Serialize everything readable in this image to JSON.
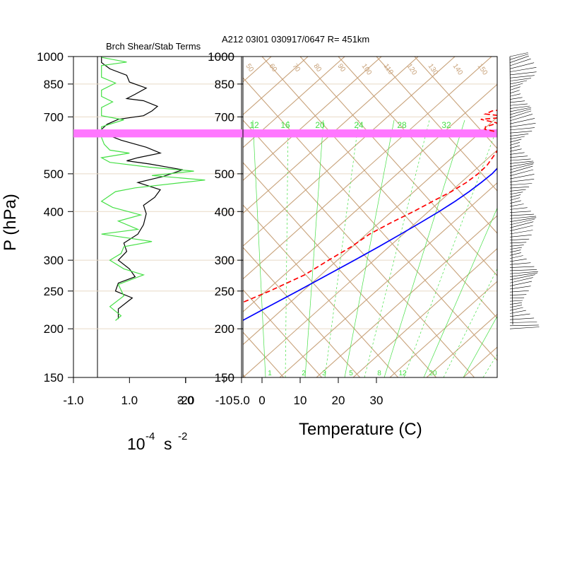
{
  "header": {
    "left_title": "Brch Shear/Stab Terms",
    "right_title": "A212 03I01 030917/0647 R= 451km"
  },
  "colors": {
    "frame": "#000000",
    "skew_grid": "#c8a27a",
    "mixing_ratio": "#46e046",
    "temperature": "#0000ff",
    "dewpoint": "#ff0000",
    "shear_term": "#000000",
    "stab_term": "#46e046",
    "highlight_band": "#ff77ff"
  },
  "chart_data": [
    {
      "type": "line",
      "name": "left-panel",
      "xlabel": "10",
      "xlabel_exp": "-4",
      "xlabel_unit": "s",
      "xlabel_unit_exp": "-2",
      "ylabel": "P (hPa)",
      "y_scale": "log",
      "ylim": [
        1000,
        150
      ],
      "xlim": [
        -1.0,
        5.0
      ],
      "x_ticks": [
        "-1.0",
        "1.0",
        "3.0",
        "5.0"
      ],
      "x_tick_values": [
        -1.0,
        1.0,
        3.0,
        5.0
      ],
      "y_ticks": [
        "150",
        "200",
        "250",
        "300",
        "400",
        "500",
        "700",
        "850",
        "1000"
      ],
      "y_tick_values": [
        150,
        200,
        250,
        300,
        400,
        500,
        700,
        850,
        1000
      ],
      "series": [
        {
          "color_key": "shear_term",
          "points": [
            [
              0.0,
              1000
            ],
            [
              0.0,
              965
            ],
            [
              0.3,
              930
            ],
            [
              0.9,
              895
            ],
            [
              1.0,
              860
            ],
            [
              1.6,
              830
            ],
            [
              1.2,
              800
            ],
            [
              0.9,
              780
            ],
            [
              1.5,
              770
            ],
            [
              2.0,
              745
            ],
            [
              1.8,
              725
            ],
            [
              1.5,
              705
            ],
            [
              0.6,
              690
            ],
            [
              0.2,
              670
            ],
            [
              0.0,
              650
            ],
            [
              0.2,
              630
            ],
            [
              0.7,
              610
            ],
            [
              1.6,
              585
            ],
            [
              2.1,
              565
            ],
            [
              1.3,
              550
            ],
            [
              0.9,
              540
            ],
            [
              1.7,
              530
            ],
            [
              2.9,
              512
            ],
            [
              2.2,
              492
            ],
            [
              1.3,
              475
            ],
            [
              2.1,
              455
            ],
            [
              1.9,
              435
            ],
            [
              1.5,
              415
            ],
            [
              1.6,
              395
            ],
            [
              1.5,
              370
            ],
            [
              1.3,
              350
            ],
            [
              0.8,
              332
            ],
            [
              0.9,
              316
            ],
            [
              0.6,
              300
            ],
            [
              1.0,
              285
            ],
            [
              1.2,
              272
            ],
            [
              0.6,
              262
            ],
            [
              0.5,
              250
            ],
            [
              1.1,
              240
            ],
            [
              0.6,
              225
            ],
            [
              0.6,
              212
            ]
          ]
        },
        {
          "color_key": "stab_term",
          "points": [
            [
              0.0,
              995
            ],
            [
              0.9,
              968
            ],
            [
              0.0,
              948
            ],
            [
              0.0,
              885
            ],
            [
              0.5,
              855
            ],
            [
              0.0,
              820
            ],
            [
              0.0,
              790
            ],
            [
              0.4,
              765
            ],
            [
              0.0,
              740
            ],
            [
              0.0,
              705
            ],
            [
              0.8,
              688
            ],
            [
              0.0,
              660
            ],
            [
              0.0,
              645
            ],
            [
              0.0,
              620
            ],
            [
              0.1,
              595
            ],
            [
              0.3,
              575
            ],
            [
              1.0,
              565
            ],
            [
              0.0,
              550
            ],
            [
              0.3,
              535
            ],
            [
              1.7,
              520
            ],
            [
              3.3,
              508
            ],
            [
              1.8,
              495
            ],
            [
              3.7,
              482
            ],
            [
              1.2,
              460
            ],
            [
              0.5,
              450
            ],
            [
              0.0,
              425
            ],
            [
              0.4,
              410
            ],
            [
              1.4,
              392
            ],
            [
              0.6,
              378
            ],
            [
              1.3,
              360
            ],
            [
              0.0,
              350
            ],
            [
              1.8,
              335
            ],
            [
              0.8,
              325
            ],
            [
              0.7,
              312
            ],
            [
              0.3,
              300
            ],
            [
              0.8,
              285
            ],
            [
              1.5,
              275
            ],
            [
              0.6,
              260
            ],
            [
              0.8,
              243
            ],
            [
              0.3,
              228
            ],
            [
              0.7,
              216
            ],
            [
              0.5,
              210
            ]
          ]
        }
      ]
    },
    {
      "type": "line",
      "name": "skew-t",
      "xlabel": "Temperature (C)",
      "y_scale": "log",
      "ylim": [
        1000,
        150
      ],
      "xlim": [
        -23,
        40
      ],
      "x_ticks": [
        "-20",
        "-10",
        "0",
        "10",
        "20",
        "30"
      ],
      "x_tick_values": [
        -20,
        -10,
        0,
        10,
        20,
        30
      ],
      "y_ticks": [
        "150",
        "200",
        "250",
        "300",
        "400",
        "500",
        "700",
        "850",
        "1000"
      ],
      "y_tick_values": [
        150,
        200,
        250,
        300,
        400,
        500,
        700,
        850,
        1000
      ],
      "mixing_ratio_labels": [
        "12",
        "16",
        "20",
        "24",
        "28",
        "32"
      ],
      "mixing_ratio_bottom_labels": [
        "1",
        "2",
        "3",
        "5",
        "8",
        "12",
        "20"
      ],
      "theta_labels": [
        "50",
        "60",
        "70",
        "80",
        "90",
        "100",
        "110",
        "120",
        "130",
        "140",
        "150"
      ],
      "highlight_band": [
        650,
        620
      ],
      "series": [
        {
          "color_key": "temperature",
          "points": [
            [
              1000,
              28.0
            ],
            [
              975,
              26.0
            ],
            [
              950,
              24.2
            ],
            [
              925,
              22.8
            ],
            [
              900,
              21.8
            ],
            [
              875,
              21.2
            ],
            [
              850,
              20.5
            ],
            [
              825,
              20.0
            ],
            [
              800,
              19.6
            ],
            [
              775,
              19.4
            ],
            [
              750,
              19.3
            ],
            [
              725,
              19.0
            ],
            [
              700,
              18.4
            ],
            [
              675,
              16.8
            ],
            [
              650,
              14.8
            ],
            [
              625,
              12.7
            ],
            [
              600,
              11.4
            ],
            [
              575,
              11.6
            ],
            [
              550,
              12.0
            ],
            [
              525,
              12.4
            ],
            [
              500,
              12.3
            ],
            [
              475,
              11.5
            ],
            [
              450,
              10.5
            ],
            [
              425,
              9.1
            ],
            [
              400,
              7.3
            ],
            [
              375,
              5.1
            ],
            [
              350,
              2.6
            ],
            [
              325,
              -0.2
            ],
            [
              300,
              -3.4
            ],
            [
              275,
              -7.0
            ],
            [
              250,
              -11.0
            ],
            [
              225,
              -15.6
            ],
            [
              200,
              -20.6
            ]
          ]
        },
        {
          "color_key": "dewpoint",
          "points": [
            [
              1000,
              24.5
            ],
            [
              975,
              24.0
            ],
            [
              950,
              22.8
            ],
            [
              925,
              20.0
            ],
            [
              900,
              18.5
            ],
            [
              875,
              17.0
            ],
            [
              850,
              15.6
            ],
            [
              825,
              14.7
            ],
            [
              800,
              13.6
            ],
            [
              775,
              13.2
            ],
            [
              750,
              8.5
            ],
            [
              725,
              -2.5
            ],
            [
              712,
              -3.5
            ],
            [
              700,
              3.8
            ],
            [
              690,
              -3.5
            ],
            [
              675,
              1.8
            ],
            [
              660,
              -0.5
            ],
            [
              650,
              0.0
            ],
            [
              640,
              4.0
            ],
            [
              625,
              6.8
            ],
            [
              600,
              7.8
            ],
            [
              575,
              8.2
            ],
            [
              550,
              8.6
            ],
            [
              525,
              9.0
            ],
            [
              500,
              8.6
            ],
            [
              475,
              7.6
            ],
            [
              450,
              5.8
            ],
            [
              425,
              3.2
            ],
            [
              400,
              0.6
            ],
            [
              375,
              -2.6
            ],
            [
              350,
              -5.6
            ],
            [
              325,
              -7.4
            ],
            [
              300,
              -10.2
            ],
            [
              275,
              -13.0
            ],
            [
              250,
              -18.4
            ],
            [
              230,
              -23.8
            ]
          ]
        }
      ]
    },
    {
      "type": "line",
      "name": "wind-profile",
      "y_scale": "log",
      "ylim": [
        1000,
        150
      ],
      "barb_count": 90
    }
  ]
}
